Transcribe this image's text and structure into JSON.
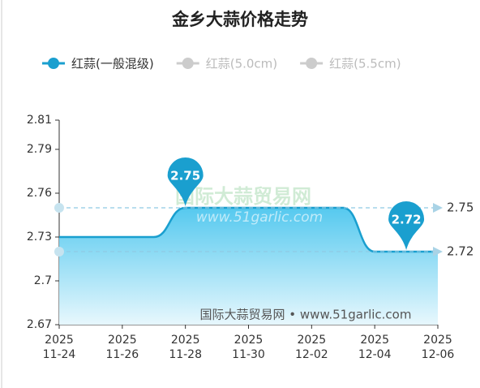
{
  "chart_data": {
    "type": "line",
    "title": "金乡大蒜价格走势",
    "x": [
      "2025-11-24",
      "2025-11-25",
      "2025-11-26",
      "2025-11-27",
      "2025-11-28",
      "2025-11-29",
      "2025-11-30",
      "2025-12-01",
      "2025-12-02",
      "2025-12-03",
      "2025-12-04",
      "2025-12-05",
      "2025-12-06"
    ],
    "series": [
      {
        "name": "红蒜(一般混级)",
        "color": "#1a9fcf",
        "values": [
          2.73,
          2.73,
          2.73,
          2.73,
          2.75,
          2.75,
          2.75,
          2.75,
          2.75,
          2.75,
          2.72,
          2.72,
          2.72
        ]
      },
      {
        "name": "红蒜(5.0cm)",
        "color": "#cccccc",
        "hidden": true
      },
      {
        "name": "红蒜(5.5cm)",
        "color": "#cccccc",
        "hidden": true
      }
    ],
    "ylim": [
      2.67,
      2.81
    ],
    "yticks": [
      2.67,
      2.7,
      2.73,
      2.76,
      2.79,
      2.81
    ],
    "xticks": [
      {
        "value": "2025-11-24",
        "label": [
          "2025",
          "11-24"
        ]
      },
      {
        "value": "2025-11-26",
        "label": [
          "2025",
          "11-26"
        ]
      },
      {
        "value": "2025-11-28",
        "label": [
          "2025",
          "11-28"
        ]
      },
      {
        "value": "2025-11-30",
        "label": [
          "2025",
          "11-30"
        ]
      },
      {
        "value": "2025-12-02",
        "label": [
          "2025",
          "12-02"
        ]
      },
      {
        "value": "2025-12-04",
        "label": [
          "2025",
          "12-04"
        ]
      },
      {
        "value": "2025-12-06",
        "label": [
          "2025",
          "12-06"
        ]
      }
    ],
    "mark_points": [
      {
        "x": "2025-11-28",
        "value": 2.75
      },
      {
        "x": "2025-12-05",
        "value": 2.72
      }
    ],
    "mark_lines": [
      {
        "value": 2.75
      },
      {
        "value": 2.72
      }
    ],
    "watermark": {
      "logo": "国际大蒜贸易网",
      "url": "www.51garlic.com",
      "footer": "国际大蒜贸易网 • www.51garlic.com"
    }
  }
}
